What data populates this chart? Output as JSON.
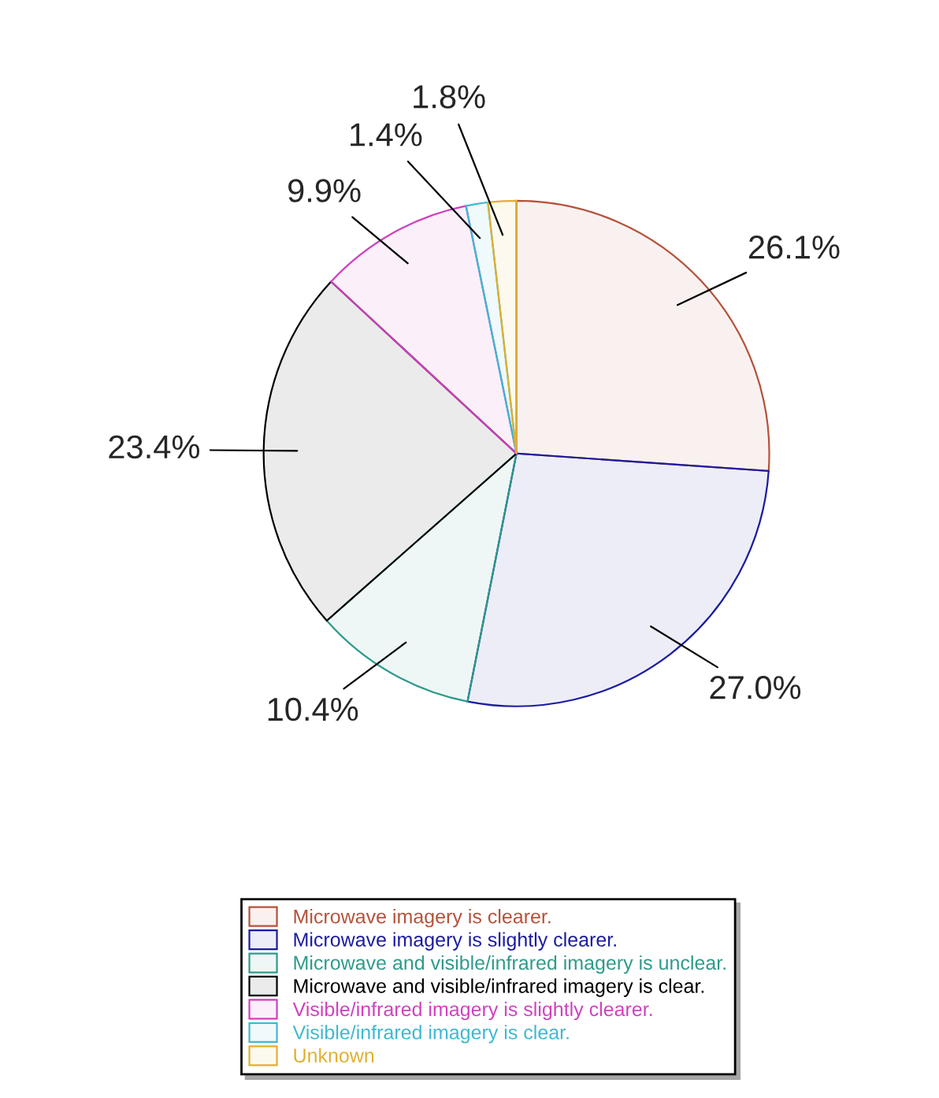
{
  "chart_data": {
    "type": "pie",
    "categories": [
      "Microwave imagery is clearer.",
      "Microwave imagery is slightly clearer.",
      "Microwave and visible/infrared imagery is unclear.",
      "Microwave and visible/infrared imagery is clear.",
      "Visible/infrared imagery is slightly clearer.",
      "Visible/infrared imagery is clear.",
      "Unknown"
    ],
    "values": [
      26.1,
      27.0,
      10.4,
      23.4,
      9.9,
      1.4,
      1.8
    ],
    "value_labels": [
      "26.1%",
      "27.0%",
      "10.4%",
      "23.4%",
      "9.9%",
      "1.4%",
      "1.8%"
    ],
    "colors": [
      "#b5523b",
      "#1c1ca0",
      "#2e9a8a",
      "#000000",
      "#d040c0",
      "#40b8d0",
      "#e0b030"
    ],
    "legend": "bottom"
  }
}
